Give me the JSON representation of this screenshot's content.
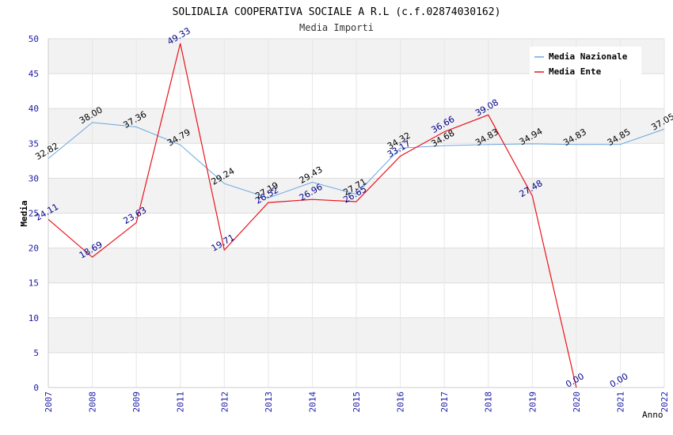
{
  "chart_data": {
    "type": "line",
    "title": "SOLIDALIA COOPERATIVA SOCIALE A R.L (c.f.02874030162)",
    "subtitle": "Media Importi",
    "xlabel": "Anno",
    "ylabel": "Media",
    "ylim": [
      0,
      50
    ],
    "yticks": [
      "0",
      "5",
      "10",
      "15",
      "20",
      "25",
      "30",
      "35",
      "40",
      "45",
      "50"
    ],
    "categories": [
      "2007",
      "2008",
      "2009",
      "2011",
      "2012",
      "2013",
      "2014",
      "2015",
      "2016",
      "2017",
      "2018",
      "2019",
      "2020",
      "2021",
      "2022"
    ],
    "legend_position": "top-right",
    "series": [
      {
        "name": "Media Nazionale",
        "color": "#6aa6e0",
        "label_color": "#000000",
        "values": [
          32.82,
          38.0,
          37.36,
          34.79,
          29.24,
          27.19,
          29.43,
          27.71,
          34.32,
          34.68,
          34.83,
          34.94,
          34.83,
          34.85,
          37.05
        ],
        "labels": [
          "32.82",
          "38.00",
          "37.36",
          "34.79",
          "29.24",
          "27.19",
          "29.43",
          "27.71",
          "34.32",
          "34.68",
          "34.83",
          "34.94",
          "34.83",
          "34.85",
          "37.05"
        ]
      },
      {
        "name": "Media Ente",
        "color": "#e8141c",
        "label_color": "#00008b",
        "values": [
          24.11,
          18.69,
          23.63,
          49.33,
          19.71,
          26.52,
          26.96,
          26.65,
          33.17,
          36.66,
          39.08,
          27.48,
          0.0,
          null,
          null
        ],
        "labels": [
          "24.11",
          "18.69",
          "23.63",
          "49.33",
          "19.71",
          "26.52",
          "26.96",
          "26.65",
          "33.17",
          "36.66",
          "39.08",
          "27.48",
          "0.00",
          "0.00",
          null
        ],
        "label_values": [
          24.11,
          18.69,
          23.63,
          49.33,
          19.71,
          26.52,
          26.96,
          26.65,
          33.17,
          36.66,
          39.08,
          27.48,
          0.0,
          0.0,
          null
        ]
      }
    ]
  }
}
